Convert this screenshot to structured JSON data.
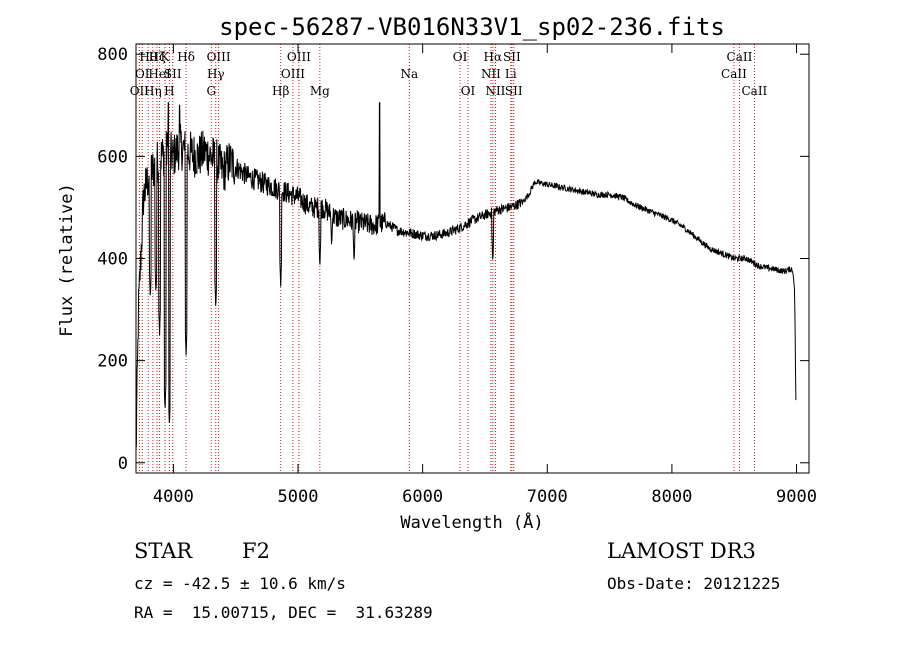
{
  "chart_data": {
    "type": "line",
    "title": "spec-56287-VB016N33V1_sp02-236.fits",
    "xlabel": "Wavelength (Å)",
    "ylabel": "Flux (relative)",
    "xlim": [
      3700,
      9100
    ],
    "ylim": [
      -20,
      820
    ],
    "xticks": [
      4000,
      5000,
      6000,
      7000,
      8000,
      9000
    ],
    "yticks": [
      0,
      200,
      400,
      600,
      800
    ],
    "grid": false,
    "spectrum_anchors": {
      "x": [
        3700,
        3720,
        3760,
        3800,
        3850,
        3900,
        3950,
        4000,
        4050,
        4100,
        4150,
        4200,
        4250,
        4300,
        4350,
        4400,
        4450,
        4500,
        4600,
        4700,
        4800,
        4900,
        5000,
        5100,
        5200,
        5300,
        5400,
        5500,
        5600,
        5700,
        5800,
        5900,
        6000,
        6100,
        6200,
        6300,
        6400,
        6500,
        6600,
        6700,
        6800,
        6850,
        6900,
        7000,
        7100,
        7200,
        7300,
        7400,
        7500,
        7600,
        7700,
        7800,
        7900,
        8000,
        8100,
        8200,
        8300,
        8400,
        8500,
        8600,
        8700,
        8800,
        8900,
        8960,
        8975,
        8985,
        8995
      ],
      "y": [
        10,
        300,
        520,
        560,
        580,
        600,
        610,
        600,
        620,
        610,
        605,
        600,
        610,
        600,
        590,
        570,
        590,
        580,
        560,
        550,
        540,
        530,
        520,
        500,
        500,
        480,
        475,
        470,
        465,
        470,
        455,
        450,
        445,
        445,
        450,
        460,
        475,
        485,
        495,
        500,
        510,
        525,
        550,
        545,
        540,
        535,
        530,
        525,
        525,
        520,
        505,
        495,
        485,
        475,
        460,
        440,
        420,
        410,
        400,
        400,
        385,
        380,
        375,
        380,
        370,
        330,
        120
      ]
    },
    "absorption_dips": [
      {
        "x": 3815,
        "y": 320
      },
      {
        "x": 3860,
        "y": 330
      },
      {
        "x": 3889,
        "y": 250
      },
      {
        "x": 3933,
        "y": 100
      },
      {
        "x": 3968,
        "y": 70
      },
      {
        "x": 4102,
        "y": 210
      },
      {
        "x": 4340,
        "y": 300
      },
      {
        "x": 4861,
        "y": 345
      },
      {
        "x": 5175,
        "y": 380
      },
      {
        "x": 5270,
        "y": 420
      },
      {
        "x": 5450,
        "y": 390
      },
      {
        "x": 6563,
        "y": 390
      }
    ],
    "emission_spikes": [
      {
        "x": 5655,
        "y": 705
      },
      {
        "x": 4050,
        "y": 700
      },
      {
        "x": 3960,
        "y": 705
      }
    ],
    "spectral_lines": [
      {
        "x": 3727,
        "label": "OII",
        "row": 2
      },
      {
        "x": 3750,
        "label": "OI",
        "row": 1
      },
      {
        "x": 3798,
        "label": "Hθ",
        "row": 0
      },
      {
        "x": 3835,
        "label": "Hη",
        "row": 2
      },
      {
        "x": 3869,
        "label": "Hζ",
        "row": 0
      },
      {
        "x": 3889,
        "label": "HeI",
        "row": 1
      },
      {
        "x": 3933,
        "label": "K",
        "row": 0
      },
      {
        "x": 3968,
        "label": "H",
        "row": 2
      },
      {
        "x": 3995,
        "label": "SII",
        "row": 1
      },
      {
        "x": 4102,
        "label": "Hδ",
        "row": 0
      },
      {
        "x": 4304,
        "label": "G",
        "row": 2
      },
      {
        "x": 4340,
        "label": "Hγ",
        "row": 1
      },
      {
        "x": 4363,
        "label": "OIII",
        "row": 0
      },
      {
        "x": 4861,
        "label": "Hβ",
        "row": 2
      },
      {
        "x": 4959,
        "label": "OIII",
        "row": 1
      },
      {
        "x": 5007,
        "label": "OIII",
        "row": 0
      },
      {
        "x": 5175,
        "label": "Mg",
        "row": 2
      },
      {
        "x": 5893,
        "label": "Na",
        "row": 1
      },
      {
        "x": 6300,
        "label": "OI",
        "row": 0
      },
      {
        "x": 6364,
        "label": "OI",
        "row": 2
      },
      {
        "x": 6548,
        "label": "NII",
        "row": 1
      },
      {
        "x": 6563,
        "label": "Hα",
        "row": 0
      },
      {
        "x": 6584,
        "label": "NII",
        "row": 2
      },
      {
        "x": 6707,
        "label": "Li",
        "row": 1
      },
      {
        "x": 6716,
        "label": "SII",
        "row": 0
      },
      {
        "x": 6731,
        "label": "SII",
        "row": 2
      },
      {
        "x": 8498,
        "label": "CaII",
        "row": 1
      },
      {
        "x": 8542,
        "label": "CaII",
        "row": 0
      },
      {
        "x": 8662,
        "label": "CaII",
        "row": 2
      }
    ]
  },
  "info": {
    "object_class": "STAR",
    "subclass": "F2",
    "survey": "LAMOST DR3",
    "redshift": "cz = -42.5 ± 10.6 km/s",
    "obs_date": "Obs-Date: 20121225",
    "coords": "RA =  15.00715, DEC =  31.63289"
  },
  "colors": {
    "line_marker": "#cc1a1a",
    "spectrum": "#000000"
  }
}
